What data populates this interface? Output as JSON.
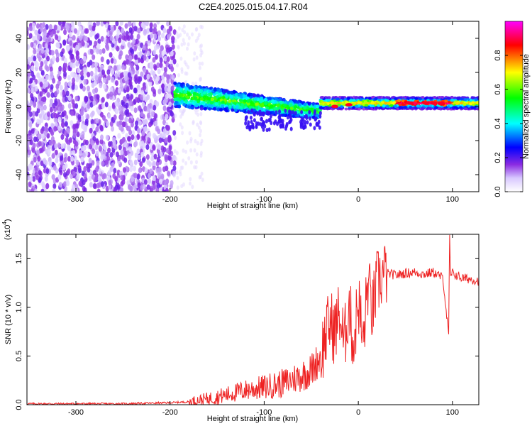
{
  "title": "C2E4.2025.015.04.17.R04",
  "chart_data": [
    {
      "type": "heatmap",
      "xlabel": "Height of straight line (km)",
      "ylabel": "Frequency (Hz)",
      "xlim": [
        -352,
        128
      ],
      "ylim": [
        -50,
        50
      ],
      "xticks": [
        -300,
        -200,
        -100,
        0,
        100
      ],
      "yticks": [
        -40,
        -20,
        0,
        20,
        40
      ],
      "colorbar": {
        "label": "Normalized spectral amplitude",
        "range": [
          0,
          1
        ],
        "ticks": [
          0.0,
          0.2,
          0.4,
          0.6,
          0.8
        ],
        "tick_labels": [
          "0.0",
          "0.2",
          "0.4",
          "0.6",
          "0.8"
        ],
        "colormap": [
          "#ffffff",
          "#8a2be2",
          "#0000ff",
          "#00ffff",
          "#00ff00",
          "#ffff00",
          "#ff0000",
          "#ff00ff"
        ]
      },
      "regions": [
        {
          "x": [
            -352,
            -195
          ],
          "freq": [
            -50,
            50
          ],
          "description_amplitude": 0.15
        },
        {
          "x": [
            -195,
            -40
          ],
          "freq_center_start": 7,
          "freq_center_end": -3,
          "amplitude": 0.45
        },
        {
          "x": [
            -40,
            128
          ],
          "freq_center": 2,
          "amplitude": 0.8
        }
      ]
    },
    {
      "type": "line",
      "xlabel": "Height of straight line (km)",
      "ylabel": "SNR (10 * v/v)",
      "y_multiplier_label": "(x10",
      "y_multiplier_exp": "4",
      "xlim": [
        -352,
        128
      ],
      "ylim": [
        0,
        1.75
      ],
      "xticks": [
        -300,
        -200,
        -100,
        0,
        100
      ],
      "yticks": [
        0.0,
        0.5,
        1.0,
        1.5
      ],
      "ytick_labels": [
        "0.0",
        "0.5",
        "1.0",
        "1.5"
      ],
      "series": [
        {
          "color": "#ee2222",
          "x": [
            -352,
            -300,
            -250,
            -200,
            -180,
            -160,
            -140,
            -120,
            -100,
            -80,
            -60,
            -50,
            -40,
            -35,
            -30,
            -25,
            -20,
            -15,
            -10,
            -5,
            0,
            5,
            10,
            15,
            20,
            25,
            30,
            40,
            50,
            60,
            70,
            80,
            90,
            96,
            97,
            98,
            100,
            110,
            120,
            128
          ],
          "y": [
            0.01,
            0.01,
            0.01,
            0.02,
            0.03,
            0.06,
            0.1,
            0.15,
            0.18,
            0.22,
            0.3,
            0.35,
            0.5,
            0.7,
            0.85,
            0.75,
            0.95,
            0.6,
            1.05,
            0.6,
            1.1,
            0.6,
            1.25,
            0.95,
            1.25,
            1.32,
            1.35,
            1.33,
            1.35,
            1.36,
            1.34,
            1.36,
            1.3,
            0.7,
            1.75,
            1.3,
            1.35,
            1.3,
            1.29,
            1.27
          ]
        }
      ]
    }
  ]
}
